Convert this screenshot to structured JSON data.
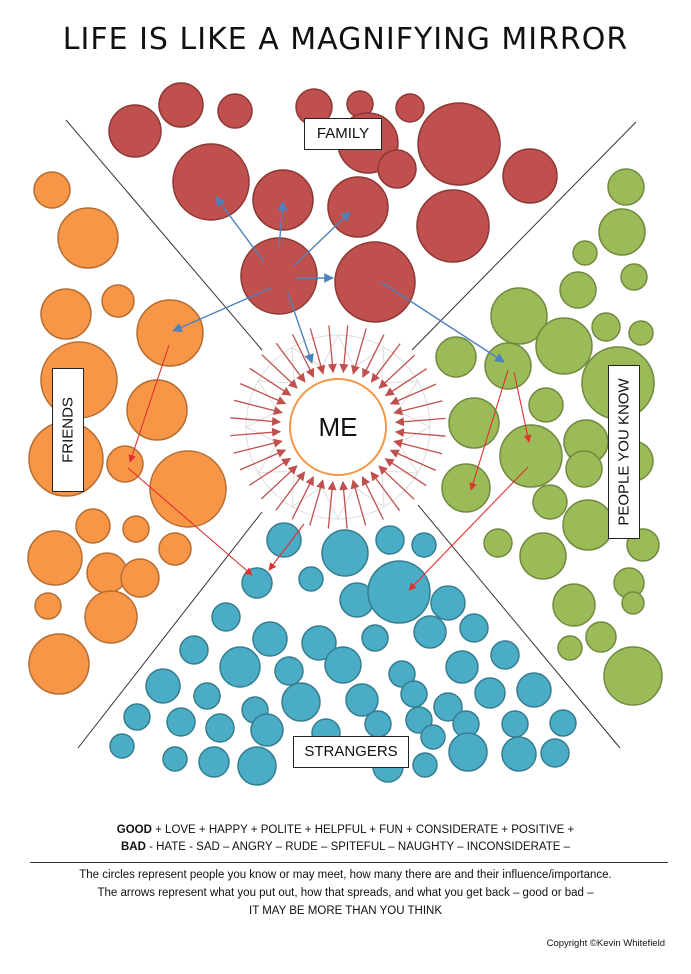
{
  "title": "LIFE IS LIKE A MAGNIFYING MIRROR",
  "center_label": "ME",
  "groups": {
    "family": {
      "label": "FAMILY",
      "color": "#c0504d",
      "stroke": "#8c3836"
    },
    "friends": {
      "label": "FRIENDS",
      "color": "#f79646",
      "stroke": "#b66d31"
    },
    "people_you_know": {
      "label": "PEOPLE YOU KNOW",
      "color": "#9bbb59",
      "stroke": "#71893f"
    },
    "strangers": {
      "label": "STRANGERS",
      "color": "#4bacc6",
      "stroke": "#357d90"
    }
  },
  "arrow_colors": {
    "inward": "#c0504d",
    "spread_blue": "#4f81bd",
    "spread_red": "#e03030"
  },
  "legend": {
    "good_word": "GOOD",
    "good_rest": " + LOVE + HAPPY + POLITE + HELPFUL + FUN + CONSIDERATE + POSITIVE +",
    "bad_word": "BAD",
    "bad_rest": " - HATE - SAD – ANGRY – RUDE – SPITEFUL – NAUGHTY – INCONSIDERATE –"
  },
  "explanation": [
    "The circles represent people you know or may meet, how many there are and their influence/importance.",
    "The arrows represent what you put out, how that spreads, and what you get back – good or bad –",
    "IT MAY BE MORE THAN YOU THINK"
  ],
  "copyright": "Copyright ©Kevin Whitefield"
}
